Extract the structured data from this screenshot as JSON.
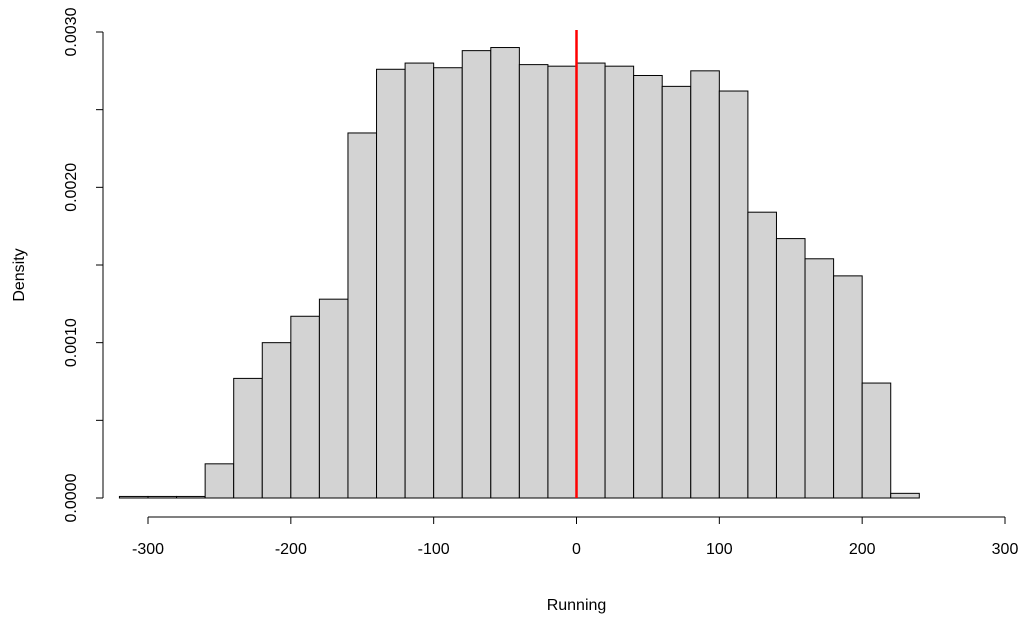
{
  "chart_data": {
    "type": "bar",
    "subtype": "histogram",
    "title": "",
    "xlabel": "Running",
    "ylabel": "Density",
    "xlim": [
      -320,
      300
    ],
    "ylim": [
      0,
      0.003
    ],
    "x_ticks": [
      -300,
      -200,
      -100,
      0,
      100,
      200,
      300
    ],
    "x_tick_labels": [
      "-300",
      "-200",
      "-100",
      "0",
      "100",
      "200",
      "300"
    ],
    "y_ticks": [
      0,
      0.001,
      0.002,
      0.003
    ],
    "y_tick_labels": [
      "0.0000",
      "0.0010",
      "0.0020",
      "0.0030"
    ],
    "bin_width": 20,
    "bin_starts": [
      -320,
      -300,
      -280,
      -260,
      -240,
      -220,
      -200,
      -180,
      -160,
      -140,
      -120,
      -100,
      -80,
      -60,
      -40,
      -20,
      0,
      20,
      40,
      60,
      80,
      100,
      120,
      140,
      160,
      180,
      200,
      220
    ],
    "values": [
      1e-05,
      1e-05,
      1e-05,
      0.00022,
      0.00077,
      0.001,
      0.00117,
      0.00128,
      0.00235,
      0.00276,
      0.0028,
      0.00277,
      0.00288,
      0.0029,
      0.00279,
      0.00278,
      0.0028,
      0.00278,
      0.00272,
      0.00265,
      0.00275,
      0.00262,
      0.00184,
      0.00167,
      0.00154,
      0.00143,
      0.00074,
      3e-05
    ],
    "x_axis_extent": [
      -300,
      300
    ],
    "reference_line": {
      "x": 0,
      "color": "#ff0000"
    },
    "bar_fill": "#d3d3d3",
    "bar_stroke": "#000000",
    "grid": false,
    "legend": "none"
  }
}
